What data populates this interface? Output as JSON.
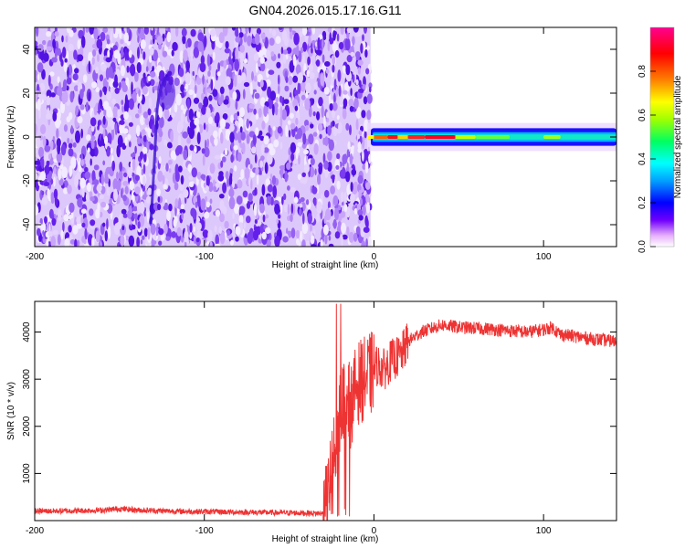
{
  "title": "GN04.2026.015.17.16.G11",
  "chart_data": [
    {
      "type": "heatmap",
      "xlabel": "Height of straight line (km)",
      "ylabel": "Frequency (Hz)",
      "xlim": [
        -200,
        143
      ],
      "ylim": [
        -50,
        50
      ],
      "xticks": [
        -200,
        -100,
        0,
        100
      ],
      "yticks": [
        -40,
        -20,
        0,
        20,
        40
      ],
      "colorbar": {
        "label": "Normalized spectral amplitude",
        "range": [
          0,
          1
        ],
        "ticks": [
          "0.0",
          "0.2",
          "0.4",
          "0.6",
          "0.8"
        ],
        "colormap": [
          "#ffffff",
          "#e8b0ff",
          "#7000ff",
          "#0000ff",
          "#00a0ff",
          "#00ffff",
          "#00ff60",
          "#a0ff00",
          "#ffff00",
          "#ff8000",
          "#ff0000",
          "#ff0090"
        ]
      },
      "regions": [
        {
          "name": "noise",
          "x_range": [
            -200,
            -2
          ],
          "freq_range": [
            -50,
            50
          ],
          "amplitude_range": [
            0.02,
            0.15
          ]
        },
        {
          "name": "signal",
          "x_range": [
            -4,
            143
          ],
          "center_freq_hz": 0,
          "half_width_hz": 4,
          "peak_amplitude": 1.0
        },
        {
          "name": "faint-streak",
          "x_range": [
            -133,
            -112
          ],
          "freq_range": [
            -40,
            32
          ],
          "amplitude_range": [
            0.1,
            0.15
          ]
        }
      ]
    },
    {
      "type": "line",
      "xlabel": "Height of straight line (km)",
      "ylabel": "SNR (10 * v/v)",
      "xlim": [
        -200,
        143
      ],
      "ylim": [
        0,
        4650
      ],
      "xticks": [
        -200,
        -100,
        0,
        100
      ],
      "yticks": [
        1000,
        2000,
        3000,
        4000
      ],
      "series": [
        {
          "color": "#ee3333",
          "points": [
            [
              -200,
              200
            ],
            [
              -180,
              205
            ],
            [
              -160,
              220
            ],
            [
              -150,
              250
            ],
            [
              -140,
              225
            ],
            [
              -120,
              200
            ],
            [
              -100,
              190
            ],
            [
              -80,
              180
            ],
            [
              -60,
              170
            ],
            [
              -40,
              160
            ],
            [
              -30,
              150
            ],
            [
              -28,
              300
            ],
            [
              -25,
              1100
            ],
            [
              -22,
              1700
            ],
            [
              -20,
              2300
            ],
            [
              -18,
              2600
            ],
            [
              -16,
              2700
            ],
            [
              -14,
              2400
            ],
            [
              -10,
              2900
            ],
            [
              -6,
              3000
            ],
            [
              -2,
              3100
            ],
            [
              2,
              3300
            ],
            [
              6,
              3200
            ],
            [
              10,
              3400
            ],
            [
              16,
              3500
            ],
            [
              20,
              3800
            ],
            [
              28,
              4000
            ],
            [
              40,
              4150
            ],
            [
              50,
              4100
            ],
            [
              60,
              4080
            ],
            [
              70,
              4060
            ],
            [
              80,
              4030
            ],
            [
              90,
              4000
            ],
            [
              100,
              4050
            ],
            [
              105,
              4100
            ],
            [
              110,
              3950
            ],
            [
              120,
              3900
            ],
            [
              130,
              3850
            ],
            [
              143,
              3800
            ]
          ]
        }
      ]
    }
  ]
}
